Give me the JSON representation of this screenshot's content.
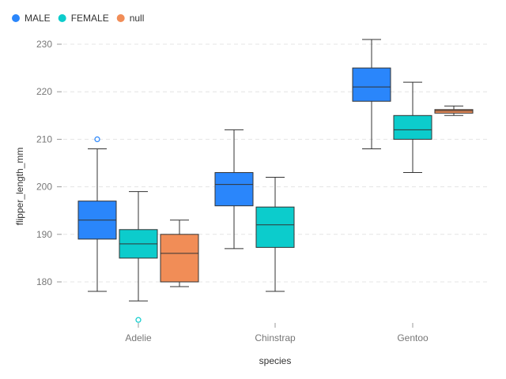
{
  "chart_data": {
    "type": "box",
    "xlabel": "species",
    "ylabel": "flipper_length_mm",
    "categories": [
      "Adelie",
      "Chinstrap",
      "Gentoo"
    ],
    "yticks": [
      180,
      190,
      200,
      210,
      220,
      230
    ],
    "ylim": [
      171,
      234
    ],
    "grid": true,
    "legend_position": "top-left",
    "series": [
      {
        "name": "MALE",
        "color": "#2a86fb",
        "boxes": [
          {
            "category": "Adelie",
            "min": 178,
            "q1": 189,
            "median": 193,
            "q3": 197,
            "max": 208,
            "outliers": [
              210
            ]
          },
          {
            "category": "Chinstrap",
            "min": 187,
            "q1": 196,
            "median": 200.5,
            "q3": 203,
            "max": 212,
            "outliers": []
          },
          {
            "category": "Gentoo",
            "min": 208,
            "q1": 218,
            "median": 221,
            "q3": 225,
            "max": 231,
            "outliers": []
          }
        ]
      },
      {
        "name": "FEMALE",
        "color": "#0ccccc",
        "boxes": [
          {
            "category": "Adelie",
            "min": 176,
            "q1": 185,
            "median": 188,
            "q3": 191,
            "max": 199,
            "outliers": [
              172
            ]
          },
          {
            "category": "Chinstrap",
            "min": 178,
            "q1": 187.25,
            "median": 192,
            "q3": 195.75,
            "max": 202,
            "outliers": []
          },
          {
            "category": "Gentoo",
            "min": 203,
            "q1": 210,
            "median": 212,
            "q3": 215,
            "max": 222,
            "outliers": []
          }
        ]
      },
      {
        "name": "null",
        "color": "#f18d57",
        "boxes": [
          {
            "category": "Adelie",
            "min": 179,
            "q1": 180,
            "median": 186,
            "q3": 190,
            "max": 193,
            "outliers": []
          },
          {
            "category": "Chinstrap",
            "min": null,
            "q1": null,
            "median": null,
            "q3": null,
            "max": null,
            "outliers": []
          },
          {
            "category": "Gentoo",
            "min": 215,
            "q1": 215.5,
            "median": 216,
            "q3": 216.25,
            "max": 217,
            "outliers": []
          }
        ]
      }
    ]
  }
}
